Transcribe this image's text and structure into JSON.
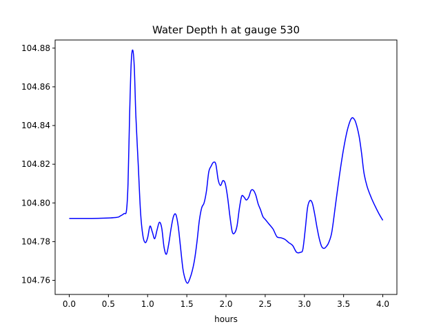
{
  "chart_data": {
    "type": "line",
    "title": "Water Depth h at gauge 530",
    "xlabel": "hours",
    "ylabel": "",
    "xlim": [
      -0.18,
      4.18
    ],
    "ylim": [
      104.7527,
      104.8842
    ],
    "xticks": [
      0.0,
      0.5,
      1.0,
      1.5,
      2.0,
      2.5,
      3.0,
      3.5,
      4.0
    ],
    "xtick_labels": [
      "0.0",
      "0.5",
      "1.0",
      "1.5",
      "2.0",
      "2.5",
      "3.0",
      "3.5",
      "4.0"
    ],
    "yticks": [
      104.76,
      104.78,
      104.8,
      104.82,
      104.84,
      104.86,
      104.88
    ],
    "ytick_labels": [
      "104.76",
      "104.78",
      "104.80",
      "104.82",
      "104.84",
      "104.86",
      "104.88"
    ],
    "grid": false,
    "legend": "none",
    "series": [
      {
        "color": "#0000ff",
        "x": [
          0.0,
          0.2,
          0.4,
          0.6,
          0.65,
          0.7,
          0.73,
          0.75,
          0.77,
          0.79,
          0.81,
          0.83,
          0.85,
          0.88,
          0.91,
          0.94,
          0.97,
          1.0,
          1.03,
          1.06,
          1.09,
          1.12,
          1.15,
          1.18,
          1.21,
          1.24,
          1.27,
          1.3,
          1.33,
          1.36,
          1.39,
          1.42,
          1.45,
          1.48,
          1.51,
          1.54,
          1.57,
          1.6,
          1.63,
          1.66,
          1.69,
          1.72,
          1.75,
          1.78,
          1.81,
          1.84,
          1.87,
          1.9,
          1.93,
          1.96,
          1.99,
          2.02,
          2.05,
          2.08,
          2.11,
          2.14,
          2.17,
          2.2,
          2.23,
          2.26,
          2.29,
          2.32,
          2.35,
          2.38,
          2.41,
          2.44,
          2.47,
          2.5,
          2.55,
          2.6,
          2.65,
          2.7,
          2.75,
          2.8,
          2.85,
          2.9,
          2.95,
          2.98,
          3.01,
          3.04,
          3.07,
          3.1,
          3.13,
          3.16,
          3.19,
          3.22,
          3.25,
          3.28,
          3.31,
          3.35,
          3.4,
          3.45,
          3.5,
          3.55,
          3.6,
          3.64,
          3.67,
          3.7,
          3.73,
          3.76,
          3.8,
          3.85,
          3.9,
          3.95,
          4.0
        ],
        "y": [
          104.792,
          104.792,
          104.7921,
          104.7925,
          104.7932,
          104.7945,
          104.796,
          104.81,
          104.845,
          104.872,
          104.879,
          104.87,
          104.845,
          104.82,
          104.795,
          104.783,
          104.7795,
          104.782,
          104.788,
          104.785,
          104.7815,
          104.786,
          104.79,
          104.787,
          104.777,
          104.7735,
          104.779,
          104.787,
          104.793,
          104.794,
          104.788,
          104.777,
          104.766,
          104.7605,
          104.7585,
          104.761,
          104.765,
          104.771,
          104.78,
          104.791,
          104.7975,
          104.8,
          104.806,
          104.816,
          104.819,
          104.821,
          104.82,
          104.812,
          104.809,
          104.8115,
          104.81,
          104.803,
          104.793,
          104.785,
          104.7845,
          104.788,
          104.797,
          104.8035,
          104.803,
          104.8015,
          104.803,
          104.8065,
          104.8065,
          104.804,
          104.7995,
          104.7965,
          104.793,
          104.7915,
          104.789,
          104.7865,
          104.7825,
          104.782,
          104.7812,
          104.7795,
          104.778,
          104.7745,
          104.7745,
          104.776,
          104.786,
          104.7975,
          104.8012,
          104.8,
          104.7945,
          104.7875,
          104.7815,
          104.7775,
          104.7765,
          104.7775,
          104.7795,
          104.785,
          104.8,
          104.815,
          104.828,
          104.838,
          104.8437,
          104.843,
          104.8395,
          104.834,
          104.8255,
          104.8155,
          104.8085,
          104.803,
          104.7985,
          104.7945,
          104.791
        ]
      }
    ]
  }
}
